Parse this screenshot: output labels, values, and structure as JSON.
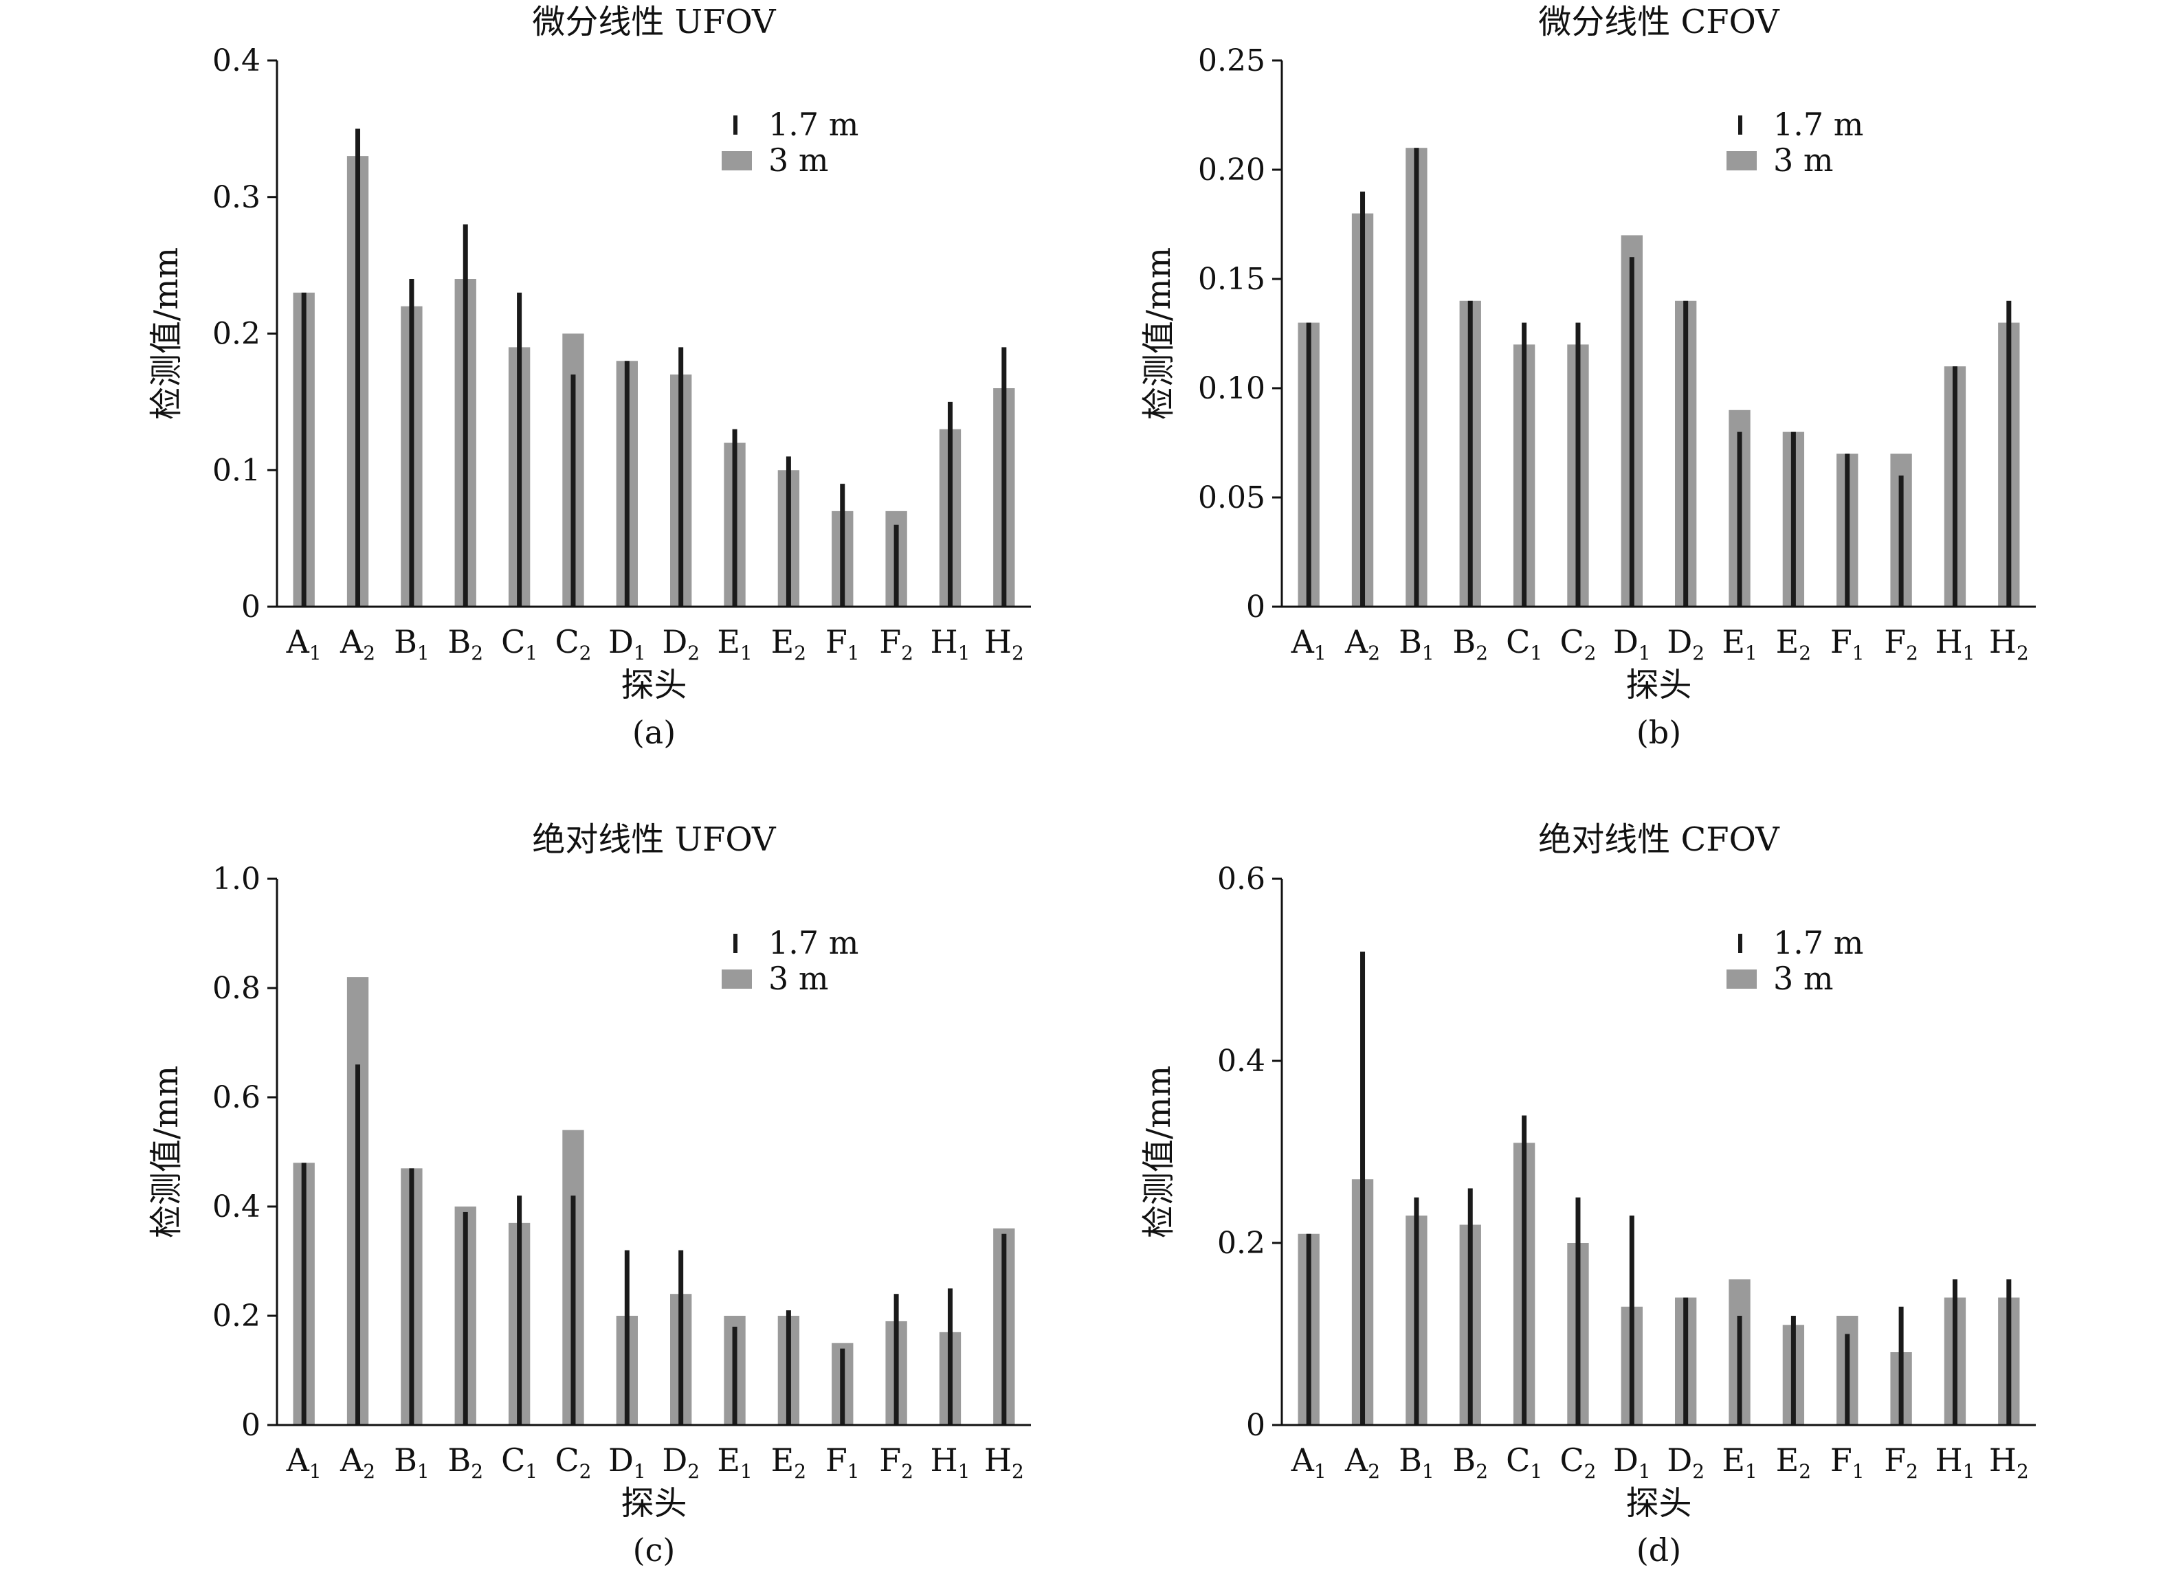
{
  "chart_data": [
    {
      "type": "bar",
      "title": "微分线性 UFOV",
      "xlabel": "探头",
      "ylabel": "检测值/mm",
      "caption": "(a)",
      "ylim": [
        0,
        0.4
      ],
      "yticks": [
        "0",
        "0.1",
        "0.2",
        "0.3",
        "0.4"
      ],
      "categories": [
        [
          "A",
          "1"
        ],
        [
          "A",
          "2"
        ],
        [
          "B",
          "1"
        ],
        [
          "B",
          "2"
        ],
        [
          "C",
          "1"
        ],
        [
          "C",
          "2"
        ],
        [
          "D",
          "1"
        ],
        [
          "D",
          "2"
        ],
        [
          "E",
          "1"
        ],
        [
          "E",
          "2"
        ],
        [
          "F",
          "1"
        ],
        [
          "F",
          "2"
        ],
        [
          "H",
          "1"
        ],
        [
          "H",
          "2"
        ]
      ],
      "legend": [
        "1.7 m",
        "3 m"
      ],
      "legend_position": "top-right",
      "series": [
        {
          "name": "1.7 m",
          "style": "line",
          "color": "#1a1a1a",
          "values": [
            0.23,
            0.35,
            0.24,
            0.28,
            0.23,
            0.17,
            0.18,
            0.19,
            0.13,
            0.11,
            0.09,
            0.06,
            0.15,
            0.19
          ]
        },
        {
          "name": "3 m",
          "style": "bar",
          "color": "#9a9a9a",
          "values": [
            0.23,
            0.33,
            0.22,
            0.24,
            0.19,
            0.2,
            0.18,
            0.17,
            0.12,
            0.1,
            0.07,
            0.07,
            0.13,
            0.16
          ]
        }
      ]
    },
    {
      "type": "bar",
      "title": "微分线性 CFOV",
      "xlabel": "探头",
      "ylabel": "检测值/mm",
      "caption": "(b)",
      "ylim": [
        0,
        0.25
      ],
      "yticks": [
        "0",
        "0.05",
        "0.10",
        "0.15",
        "0.20",
        "0.25"
      ],
      "categories": [
        [
          "A",
          "1"
        ],
        [
          "A",
          "2"
        ],
        [
          "B",
          "1"
        ],
        [
          "B",
          "2"
        ],
        [
          "C",
          "1"
        ],
        [
          "C",
          "2"
        ],
        [
          "D",
          "1"
        ],
        [
          "D",
          "2"
        ],
        [
          "E",
          "1"
        ],
        [
          "E",
          "2"
        ],
        [
          "F",
          "1"
        ],
        [
          "F",
          "2"
        ],
        [
          "H",
          "1"
        ],
        [
          "H",
          "2"
        ]
      ],
      "legend": [
        "1.7 m",
        "3 m"
      ],
      "legend_position": "top-right",
      "series": [
        {
          "name": "1.7 m",
          "style": "line",
          "color": "#1a1a1a",
          "values": [
            0.13,
            0.19,
            0.21,
            0.14,
            0.13,
            0.13,
            0.16,
            0.14,
            0.08,
            0.08,
            0.07,
            0.06,
            0.11,
            0.14
          ]
        },
        {
          "name": "3 m",
          "style": "bar",
          "color": "#9a9a9a",
          "values": [
            0.13,
            0.18,
            0.21,
            0.14,
            0.12,
            0.12,
            0.17,
            0.14,
            0.09,
            0.08,
            0.07,
            0.07,
            0.11,
            0.13
          ]
        }
      ]
    },
    {
      "type": "bar",
      "title": "绝对线性 UFOV",
      "xlabel": "探头",
      "ylabel": "检测值/mm",
      "caption": "(c)",
      "ylim": [
        0,
        1.0
      ],
      "yticks": [
        "0",
        "0.2",
        "0.4",
        "0.6",
        "0.8",
        "1.0"
      ],
      "categories": [
        [
          "A",
          "1"
        ],
        [
          "A",
          "2"
        ],
        [
          "B",
          "1"
        ],
        [
          "B",
          "2"
        ],
        [
          "C",
          "1"
        ],
        [
          "C",
          "2"
        ],
        [
          "D",
          "1"
        ],
        [
          "D",
          "2"
        ],
        [
          "E",
          "1"
        ],
        [
          "E",
          "2"
        ],
        [
          "F",
          "1"
        ],
        [
          "F",
          "2"
        ],
        [
          "H",
          "1"
        ],
        [
          "H",
          "2"
        ]
      ],
      "legend": [
        "1.7 m",
        "3 m"
      ],
      "legend_position": "top-right",
      "series": [
        {
          "name": "1.7 m",
          "style": "line",
          "color": "#1a1a1a",
          "values": [
            0.48,
            0.66,
            0.47,
            0.39,
            0.42,
            0.42,
            0.32,
            0.32,
            0.18,
            0.21,
            0.14,
            0.24,
            0.25,
            0.35
          ]
        },
        {
          "name": "3 m",
          "style": "bar",
          "color": "#9a9a9a",
          "values": [
            0.48,
            0.82,
            0.47,
            0.4,
            0.37,
            0.54,
            0.2,
            0.24,
            0.2,
            0.2,
            0.15,
            0.19,
            0.17,
            0.36
          ]
        }
      ]
    },
    {
      "type": "bar",
      "title": "绝对线性 CFOV",
      "xlabel": "探头",
      "ylabel": "检测值/mm",
      "caption": "(d)",
      "ylim": [
        0,
        0.6
      ],
      "yticks": [
        "0",
        "0.2",
        "0.4",
        "0.6"
      ],
      "categories": [
        [
          "A",
          "1"
        ],
        [
          "A",
          "2"
        ],
        [
          "B",
          "1"
        ],
        [
          "B",
          "2"
        ],
        [
          "C",
          "1"
        ],
        [
          "C",
          "2"
        ],
        [
          "D",
          "1"
        ],
        [
          "D",
          "2"
        ],
        [
          "E",
          "1"
        ],
        [
          "E",
          "2"
        ],
        [
          "F",
          "1"
        ],
        [
          "F",
          "2"
        ],
        [
          "H",
          "1"
        ],
        [
          "H",
          "2"
        ]
      ],
      "legend": [
        "1.7 m",
        "3 m"
      ],
      "legend_position": "top-right",
      "series": [
        {
          "name": "1.7 m",
          "style": "line",
          "color": "#1a1a1a",
          "values": [
            0.21,
            0.52,
            0.25,
            0.26,
            0.34,
            0.25,
            0.23,
            0.14,
            0.12,
            0.12,
            0.1,
            0.13,
            0.16,
            0.16
          ]
        },
        {
          "name": "3 m",
          "style": "bar",
          "color": "#9a9a9a",
          "values": [
            0.21,
            0.27,
            0.23,
            0.22,
            0.31,
            0.2,
            0.13,
            0.14,
            0.16,
            0.11,
            0.12,
            0.08,
            0.14,
            0.14
          ]
        }
      ]
    }
  ]
}
